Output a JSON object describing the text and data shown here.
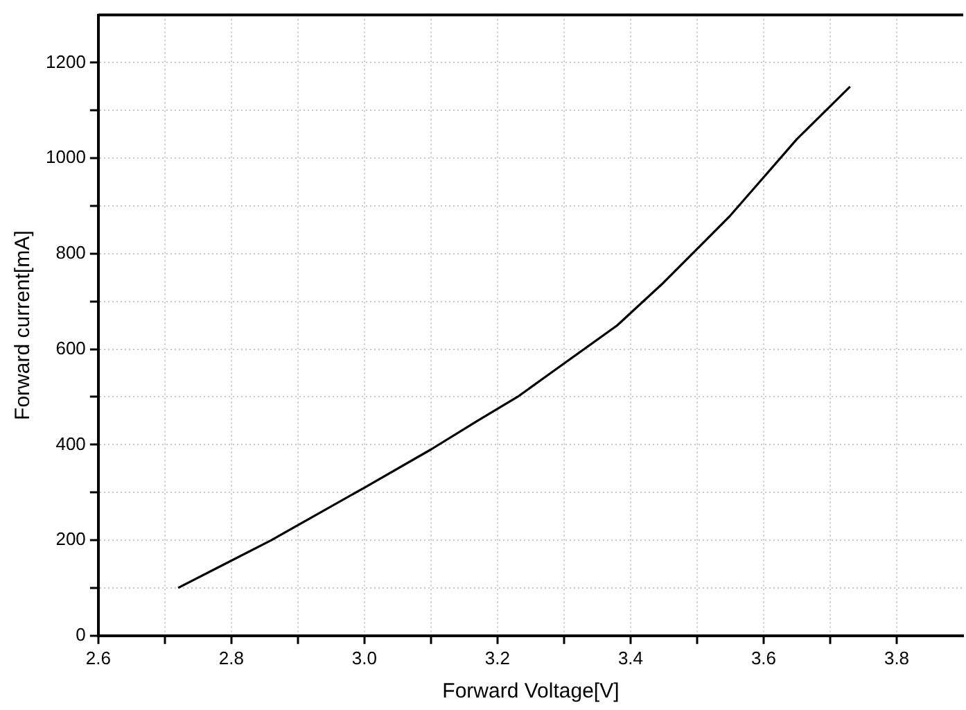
{
  "chart_data": {
    "type": "line",
    "xlabel": "Forward Voltage[V]",
    "ylabel": "Forward current[mA]",
    "xlim": [
      2.6,
      3.9
    ],
    "ylim": [
      0,
      1300
    ],
    "xticks": [
      2.6,
      {
        "value": 2.7,
        "label": null
      },
      {
        "value": 2.8,
        "label": "2.8"
      },
      {
        "value": 2.9,
        "label": null
      },
      {
        "value": 3.0,
        "label": "3.0"
      },
      {
        "value": 3.1,
        "label": null
      },
      {
        "value": 3.2,
        "label": "3.2"
      },
      {
        "value": 3.3,
        "label": null
      },
      {
        "value": 3.4,
        "label": "3.4"
      },
      {
        "value": 3.5,
        "label": null
      },
      {
        "value": 3.6,
        "label": "3.6"
      },
      {
        "value": 3.7,
        "label": null
      },
      {
        "value": 3.8,
        "label": "3.8"
      }
    ],
    "yticks": [
      0,
      {
        "value": 100,
        "label": null
      },
      200,
      {
        "value": 300,
        "label": null
      },
      400,
      {
        "value": 500,
        "label": null
      },
      600,
      {
        "value": 700,
        "label": null
      },
      800,
      {
        "value": 900,
        "label": null
      },
      1000,
      {
        "value": 1100,
        "label": null
      },
      1200
    ],
    "grid": true,
    "legend": false,
    "marker": "none",
    "line_style": "solid",
    "series": [
      {
        "color": "#000000",
        "x": [
          2.72,
          2.79,
          2.86,
          3.0,
          3.1,
          3.17,
          3.23,
          3.28,
          3.38,
          3.45,
          3.55,
          3.6,
          3.65,
          3.73
        ],
        "values": [
          100,
          150,
          200,
          310,
          390,
          450,
          500,
          550,
          650,
          740,
          880,
          960,
          1040,
          1150
        ]
      }
    ]
  }
}
